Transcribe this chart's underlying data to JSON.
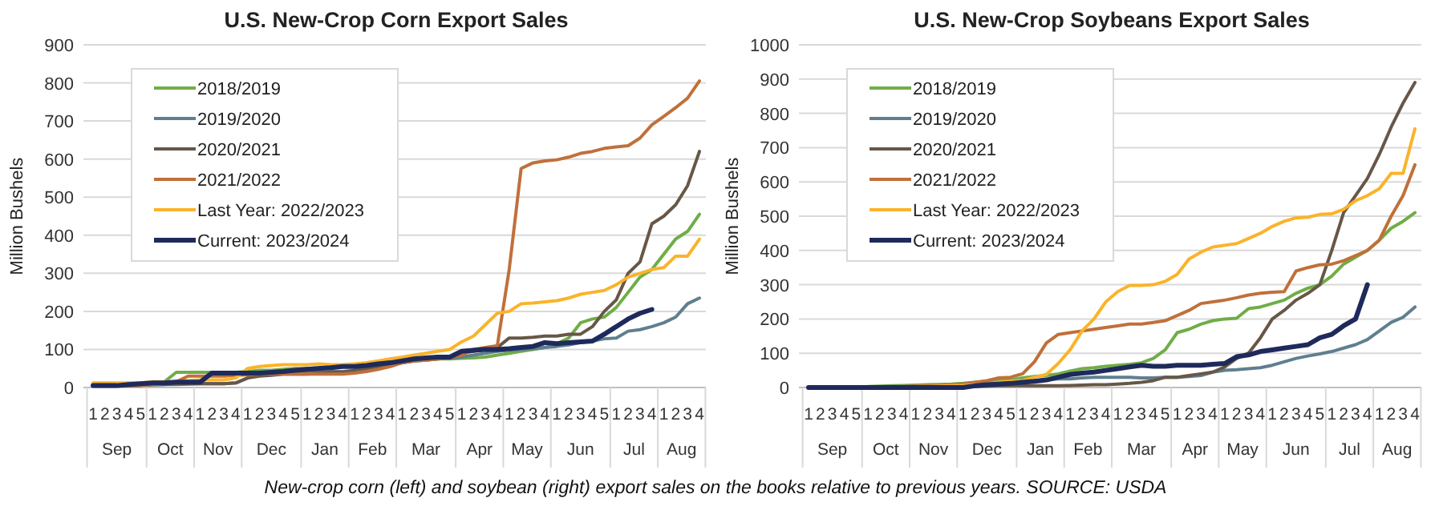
{
  "chart_data": [
    {
      "type": "line",
      "title": "U.S. New-Crop Corn Export Sales",
      "ylabel": "Million Bushels",
      "categories": [
        "1",
        "2",
        "3",
        "4",
        "5",
        "1",
        "2",
        "3",
        "4",
        "1",
        "2",
        "3",
        "4",
        "1",
        "2",
        "3",
        "4",
        "5",
        "1",
        "2",
        "3",
        "4",
        "1",
        "2",
        "3",
        "4",
        "1",
        "2",
        "3",
        "4",
        "5",
        "1",
        "2",
        "3",
        "4",
        "1",
        "2",
        "3",
        "4",
        "1",
        "2",
        "3",
        "4",
        "5",
        "1",
        "2",
        "3",
        "4",
        "1",
        "2",
        "3",
        "4"
      ],
      "annotations": [
        "Sep",
        "Oct",
        "Nov",
        "Dec",
        "Jan",
        "Feb",
        "Mar",
        "Apr",
        "May",
        "Jun",
        "Jul",
        "Aug"
      ],
      "ylim": [
        0,
        900
      ],
      "yticks": [
        0,
        100,
        200,
        300,
        400,
        500,
        600,
        700,
        800,
        900
      ],
      "grid": "y",
      "legend": "top left",
      "marker": "none",
      "line_style": "solid",
      "series": [
        {
          "name": "2018/2019",
          "color": "#70ad47",
          "values": [
            null,
            null,
            null,
            10,
            10,
            12,
            15,
            40,
            40,
            40,
            40,
            40,
            40,
            42,
            45,
            45,
            48,
            50,
            50,
            52,
            55,
            55,
            57,
            60,
            62,
            65,
            68,
            70,
            72,
            75,
            75,
            77,
            78,
            80,
            85,
            90,
            95,
            100,
            105,
            115,
            130,
            170,
            180,
            185,
            210,
            250,
            290,
            310,
            350,
            390,
            410,
            455
          ]
        },
        {
          "name": "2019/2020",
          "color": "#5f7f8f",
          "values": [
            5,
            5,
            5,
            5,
            6,
            7,
            8,
            8,
            9,
            10,
            10,
            10,
            12,
            25,
            35,
            38,
            40,
            40,
            40,
            40,
            42,
            42,
            45,
            48,
            55,
            60,
            65,
            70,
            72,
            75,
            78,
            80,
            85,
            90,
            95,
            98,
            100,
            102,
            105,
            108,
            112,
            118,
            122,
            128,
            130,
            148,
            152,
            160,
            170,
            185,
            220,
            235
          ]
        },
        {
          "name": "2020/2021",
          "color": "#675747",
          "values": [
            5,
            5,
            5,
            5,
            6,
            8,
            8,
            10,
            10,
            10,
            10,
            10,
            12,
            25,
            30,
            32,
            35,
            35,
            35,
            38,
            40,
            40,
            45,
            50,
            55,
            60,
            65,
            70,
            75,
            78,
            80,
            90,
            95,
            100,
            105,
            130,
            130,
            132,
            135,
            135,
            140,
            140,
            160,
            200,
            230,
            300,
            330,
            430,
            450,
            480,
            530,
            620
          ]
        },
        {
          "name": "2021/2022",
          "color": "#c0703a",
          "values": [
            5,
            5,
            5,
            5,
            6,
            8,
            10,
            15,
            30,
            30,
            30,
            30,
            32,
            33,
            35,
            35,
            35,
            35,
            35,
            35,
            35,
            35,
            38,
            42,
            48,
            55,
            65,
            70,
            72,
            75,
            78,
            85,
            100,
            105,
            110,
            310,
            575,
            590,
            595,
            598,
            605,
            615,
            620,
            628,
            632,
            635,
            655,
            690,
            712,
            735,
            760,
            805
          ]
        },
        {
          "name": "Last Year: 2022/2023",
          "color": "#fbb32a",
          "values": [
            12,
            12,
            12,
            12,
            12,
            15,
            15,
            15,
            18,
            20,
            20,
            20,
            25,
            50,
            55,
            58,
            60,
            60,
            60,
            62,
            60,
            60,
            62,
            65,
            70,
            75,
            80,
            85,
            90,
            95,
            100,
            120,
            135,
            165,
            195,
            200,
            220,
            222,
            225,
            228,
            235,
            245,
            250,
            255,
            270,
            290,
            300,
            310,
            315,
            345,
            345,
            390
          ]
        },
        {
          "name": "Current: 2023/2024",
          "color": "#1f2a5c",
          "values": [
            5,
            5,
            5,
            8,
            10,
            12,
            12,
            14,
            14,
            14,
            38,
            38,
            38,
            38,
            38,
            40,
            42,
            45,
            48,
            50,
            52,
            55,
            55,
            58,
            62,
            65,
            70,
            75,
            78,
            80,
            80,
            95,
            98,
            100,
            100,
            102,
            105,
            108,
            118,
            115,
            118,
            120,
            122,
            140,
            160,
            180,
            195,
            205,
            null,
            null,
            null,
            null
          ]
        }
      ]
    },
    {
      "type": "line",
      "title": "U.S. New-Crop Soybeans Export Sales",
      "ylabel": "Million Bushels",
      "categories": [
        "1",
        "2",
        "3",
        "4",
        "5",
        "1",
        "2",
        "3",
        "4",
        "1",
        "2",
        "3",
        "4",
        "1",
        "2",
        "3",
        "4",
        "5",
        "1",
        "2",
        "3",
        "4",
        "1",
        "2",
        "3",
        "4",
        "1",
        "2",
        "3",
        "4",
        "5",
        "1",
        "2",
        "3",
        "4",
        "1",
        "2",
        "3",
        "4",
        "1",
        "2",
        "3",
        "4",
        "5",
        "1",
        "2",
        "3",
        "4",
        "1",
        "2",
        "3",
        "4"
      ],
      "annotations": [
        "Sep",
        "Oct",
        "Nov",
        "Dec",
        "Jan",
        "Feb",
        "Mar",
        "Apr",
        "May",
        "Jun",
        "Jul",
        "Aug",
        "New-crop corn (left) and soybean (right) export sales on the books relative to previous years. SOURCE: USDA"
      ],
      "ylim": [
        0,
        1000
      ],
      "yticks": [
        0,
        100,
        200,
        300,
        400,
        500,
        600,
        700,
        800,
        900,
        1000
      ],
      "grid": "y",
      "legend": "top left",
      "marker": "none",
      "line_style": "solid",
      "series": [
        {
          "name": "2018/2019",
          "color": "#70ad47",
          "values": [
            null,
            null,
            null,
            null,
            null,
            3,
            4,
            5,
            6,
            7,
            8,
            9,
            10,
            12,
            15,
            18,
            20,
            22,
            28,
            32,
            35,
            40,
            48,
            55,
            58,
            62,
            65,
            68,
            72,
            85,
            110,
            160,
            170,
            185,
            195,
            200,
            202,
            230,
            235,
            245,
            255,
            275,
            290,
            300,
            325,
            360,
            380,
            400,
            430,
            465,
            485,
            510
          ]
        },
        {
          "name": "2019/2020",
          "color": "#5f7f8f",
          "values": [
            null,
            null,
            null,
            null,
            null,
            2,
            2,
            3,
            3,
            4,
            5,
            5,
            6,
            7,
            8,
            10,
            12,
            15,
            18,
            20,
            22,
            25,
            25,
            28,
            30,
            30,
            30,
            30,
            28,
            28,
            30,
            30,
            32,
            35,
            45,
            50,
            52,
            55,
            58,
            65,
            75,
            85,
            92,
            98,
            105,
            115,
            125,
            140,
            165,
            190,
            205,
            235
          ]
        },
        {
          "name": "2020/2021",
          "color": "#675747",
          "values": [
            null,
            null,
            null,
            null,
            null,
            null,
            null,
            1,
            1,
            2,
            2,
            2,
            2,
            3,
            3,
            4,
            5,
            5,
            5,
            5,
            5,
            5,
            6,
            7,
            8,
            8,
            10,
            12,
            15,
            20,
            30,
            30,
            35,
            40,
            45,
            60,
            85,
            100,
            145,
            200,
            225,
            255,
            275,
            300,
            400,
            510,
            560,
            610,
            680,
            760,
            830,
            890
          ]
        },
        {
          "name": "2021/2022",
          "color": "#c0703a",
          "values": [
            null,
            null,
            null,
            null,
            null,
            null,
            null,
            2,
            3,
            4,
            5,
            6,
            8,
            10,
            15,
            20,
            28,
            30,
            40,
            75,
            130,
            155,
            160,
            165,
            170,
            175,
            180,
            185,
            185,
            190,
            195,
            210,
            225,
            245,
            250,
            255,
            262,
            270,
            275,
            278,
            280,
            340,
            350,
            358,
            360,
            370,
            385,
            400,
            430,
            500,
            560,
            650
          ]
        },
        {
          "name": "Last Year: 2022/2023",
          "color": "#fbb32a",
          "values": [
            null,
            null,
            null,
            null,
            null,
            null,
            null,
            null,
            null,
            3,
            3,
            4,
            5,
            6,
            8,
            10,
            15,
            18,
            20,
            30,
            38,
            70,
            110,
            165,
            200,
            250,
            280,
            298,
            298,
            300,
            310,
            330,
            375,
            395,
            410,
            415,
            420,
            435,
            450,
            470,
            485,
            495,
            497,
            505,
            507,
            520,
            545,
            560,
            580,
            625,
            625,
            755
          ]
        },
        {
          "name": "Current: 2023/2024",
          "color": "#1f2a5c",
          "values": [
            0,
            0,
            0,
            0,
            0,
            0,
            0,
            0,
            0,
            0,
            0,
            0,
            0,
            0,
            5,
            8,
            10,
            12,
            15,
            18,
            22,
            30,
            38,
            42,
            45,
            50,
            55,
            60,
            65,
            62,
            62,
            65,
            65,
            65,
            68,
            70,
            90,
            95,
            105,
            110,
            115,
            120,
            125,
            145,
            155,
            180,
            200,
            300,
            null,
            null,
            null,
            null
          ]
        }
      ]
    }
  ]
}
